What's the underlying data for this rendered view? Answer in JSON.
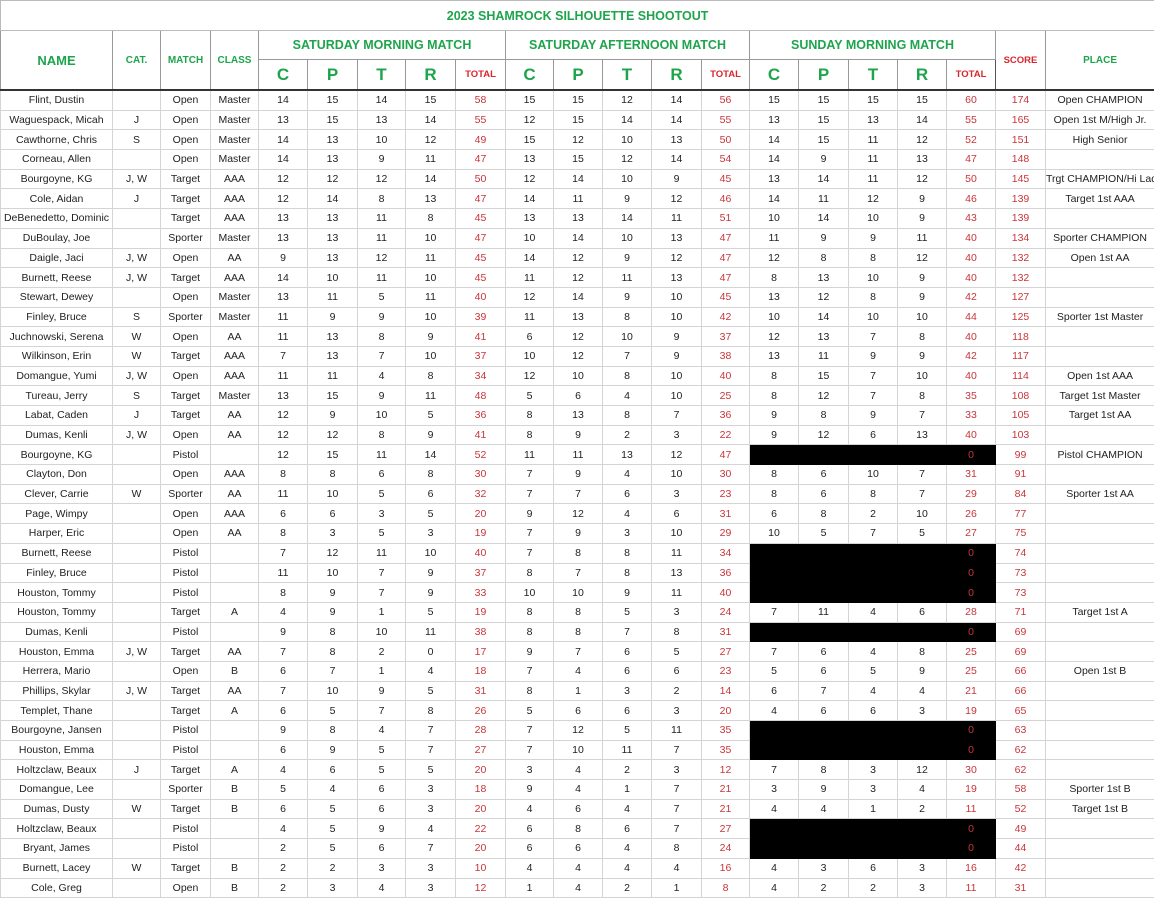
{
  "title": "2023 SHAMROCK SILHOUETTE SHOOTOUT",
  "headers": {
    "name": "NAME",
    "cat": "CAT.",
    "match": "MATCH",
    "class": "CLASS",
    "sat_am": "SATURDAY MORNING MATCH",
    "sat_pm": "SATURDAY AFTERNOON MATCH",
    "sun_am": "SUNDAY MORNING MATCH",
    "score": "SCORE",
    "place": "PLACE",
    "sub": [
      "C",
      "P",
      "T",
      "R",
      "TOTAL"
    ]
  },
  "colors": {
    "header_green": "#1ea54c",
    "total_red": "#c8353a",
    "blackout": "#000000"
  },
  "rows": [
    {
      "cells": [
        "Flint, Dustin",
        "",
        "Open",
        "Master",
        "14",
        "15",
        "14",
        "15",
        "58",
        "15",
        "15",
        "12",
        "14",
        "56",
        "15",
        "15",
        "15",
        "15",
        "60",
        "174",
        "Open CHAMPION"
      ]
    },
    {
      "cells": [
        "Waguespack, Micah",
        "J",
        "Open",
        "Master",
        "13",
        "15",
        "13",
        "14",
        "55",
        "12",
        "15",
        "14",
        "14",
        "55",
        "13",
        "15",
        "13",
        "14",
        "55",
        "165",
        "Open 1st M/High Jr."
      ]
    },
    {
      "cells": [
        "Cawthorne, Chris",
        "S",
        "Open",
        "Master",
        "14",
        "13",
        "10",
        "12",
        "49",
        "15",
        "12",
        "10",
        "13",
        "50",
        "14",
        "15",
        "11",
        "12",
        "52",
        "151",
        "High Senior"
      ]
    },
    {
      "cells": [
        "Corneau, Allen",
        "",
        "Open",
        "Master",
        "14",
        "13",
        "9",
        "11",
        "47",
        "13",
        "15",
        "12",
        "14",
        "54",
        "14",
        "9",
        "11",
        "13",
        "47",
        "148",
        ""
      ]
    },
    {
      "cells": [
        "Bourgoyne, KG",
        "J, W",
        "Target",
        "AAA",
        "12",
        "12",
        "12",
        "14",
        "50",
        "12",
        "14",
        "10",
        "9",
        "45",
        "13",
        "14",
        "11",
        "12",
        "50",
        "145",
        "Trgt CHAMPION/Hi Lady"
      ]
    },
    {
      "cells": [
        "Cole, Aidan",
        "J",
        "Target",
        "AAA",
        "12",
        "14",
        "8",
        "13",
        "47",
        "14",
        "11",
        "9",
        "12",
        "46",
        "14",
        "11",
        "12",
        "9",
        "46",
        "139",
        "Target 1st AAA"
      ]
    },
    {
      "cells": [
        "DeBenedetto, Dominic",
        "",
        "Target",
        "AAA",
        "13",
        "13",
        "11",
        "8",
        "45",
        "13",
        "13",
        "14",
        "11",
        "51",
        "10",
        "14",
        "10",
        "9",
        "43",
        "139",
        ""
      ]
    },
    {
      "cells": [
        "DuBoulay, Joe",
        "",
        "Sporter",
        "Master",
        "13",
        "13",
        "11",
        "10",
        "47",
        "10",
        "14",
        "10",
        "13",
        "47",
        "11",
        "9",
        "9",
        "11",
        "40",
        "134",
        "Sporter CHAMPION"
      ]
    },
    {
      "cells": [
        "Daigle, Jaci",
        "J, W",
        "Open",
        "AA",
        "9",
        "13",
        "12",
        "11",
        "45",
        "14",
        "12",
        "9",
        "12",
        "47",
        "12",
        "8",
        "8",
        "12",
        "40",
        "132",
        "Open 1st AA"
      ]
    },
    {
      "cells": [
        "Burnett, Reese",
        "J, W",
        "Target",
        "AAA",
        "14",
        "10",
        "11",
        "10",
        "45",
        "11",
        "12",
        "11",
        "13",
        "47",
        "8",
        "13",
        "10",
        "9",
        "40",
        "132",
        ""
      ]
    },
    {
      "cells": [
        "Stewart, Dewey",
        "",
        "Open",
        "Master",
        "13",
        "11",
        "5",
        "11",
        "40",
        "12",
        "14",
        "9",
        "10",
        "45",
        "13",
        "12",
        "8",
        "9",
        "42",
        "127",
        ""
      ]
    },
    {
      "cells": [
        "Finley, Bruce",
        "S",
        "Sporter",
        "Master",
        "11",
        "9",
        "9",
        "10",
        "39",
        "11",
        "13",
        "8",
        "10",
        "42",
        "10",
        "14",
        "10",
        "10",
        "44",
        "125",
        "Sporter 1st Master"
      ]
    },
    {
      "cells": [
        "Juchnowski, Serena",
        "W",
        "Open",
        "AA",
        "11",
        "13",
        "8",
        "9",
        "41",
        "6",
        "12",
        "10",
        "9",
        "37",
        "12",
        "13",
        "7",
        "8",
        "40",
        "118",
        ""
      ]
    },
    {
      "cells": [
        "Wilkinson, Erin",
        "W",
        "Target",
        "AAA",
        "7",
        "13",
        "7",
        "10",
        "37",
        "10",
        "12",
        "7",
        "9",
        "38",
        "13",
        "11",
        "9",
        "9",
        "42",
        "117",
        ""
      ]
    },
    {
      "cells": [
        "Domangue, Yumi",
        "J, W",
        "Open",
        "AAA",
        "11",
        "11",
        "4",
        "8",
        "34",
        "12",
        "10",
        "8",
        "10",
        "40",
        "8",
        "15",
        "7",
        "10",
        "40",
        "114",
        "Open 1st AAA"
      ]
    },
    {
      "cells": [
        "Tureau, Jerry",
        "S",
        "Target",
        "Master",
        "13",
        "15",
        "9",
        "11",
        "48",
        "5",
        "6",
        "4",
        "10",
        "25",
        "8",
        "12",
        "7",
        "8",
        "35",
        "108",
        "Target 1st Master"
      ]
    },
    {
      "cells": [
        "Labat, Caden",
        "J",
        "Target",
        "AA",
        "12",
        "9",
        "10",
        "5",
        "36",
        "8",
        "13",
        "8",
        "7",
        "36",
        "9",
        "8",
        "9",
        "7",
        "33",
        "105",
        "Target 1st AA"
      ]
    },
    {
      "cells": [
        "Dumas, Kenli",
        "J, W",
        "Open",
        "AA",
        "12",
        "12",
        "8",
        "9",
        "41",
        "8",
        "9",
        "2",
        "3",
        "22",
        "9",
        "12",
        "6",
        "13",
        "40",
        "103",
        ""
      ]
    },
    {
      "cells": [
        "Bourgoyne, KG",
        "",
        "Pistol",
        "",
        "12",
        "15",
        "11",
        "14",
        "52",
        "11",
        "11",
        "13",
        "12",
        "47",
        "",
        "",
        "",
        "",
        "0",
        "99",
        "Pistol CHAMPION"
      ],
      "sunday_blacked_out": true
    },
    {
      "cells": [
        "Clayton, Don",
        "",
        "Open",
        "AAA",
        "8",
        "8",
        "6",
        "8",
        "30",
        "7",
        "9",
        "4",
        "10",
        "30",
        "8",
        "6",
        "10",
        "7",
        "31",
        "91",
        ""
      ]
    },
    {
      "cells": [
        "Clever, Carrie",
        "W",
        "Sporter",
        "AA",
        "11",
        "10",
        "5",
        "6",
        "32",
        "7",
        "7",
        "6",
        "3",
        "23",
        "8",
        "6",
        "8",
        "7",
        "29",
        "84",
        "Sporter 1st AA"
      ]
    },
    {
      "cells": [
        "Page, Wimpy",
        "",
        "Open",
        "AAA",
        "6",
        "6",
        "3",
        "5",
        "20",
        "9",
        "12",
        "4",
        "6",
        "31",
        "6",
        "8",
        "2",
        "10",
        "26",
        "77",
        ""
      ]
    },
    {
      "cells": [
        "Harper, Eric",
        "",
        "Open",
        "AA",
        "8",
        "3",
        "5",
        "3",
        "19",
        "7",
        "9",
        "3",
        "10",
        "29",
        "10",
        "5",
        "7",
        "5",
        "27",
        "75",
        ""
      ]
    },
    {
      "cells": [
        "Burnett, Reese",
        "",
        "Pistol",
        "",
        "7",
        "12",
        "11",
        "10",
        "40",
        "7",
        "8",
        "8",
        "11",
        "34",
        "",
        "",
        "",
        "",
        "0",
        "74",
        ""
      ],
      "sunday_blacked_out": true
    },
    {
      "cells": [
        "Finley, Bruce",
        "",
        "Pistol",
        "",
        "11",
        "10",
        "7",
        "9",
        "37",
        "8",
        "7",
        "8",
        "13",
        "36",
        "",
        "",
        "",
        "",
        "0",
        "73",
        ""
      ],
      "sunday_blacked_out": true
    },
    {
      "cells": [
        "Houston, Tommy",
        "",
        "Pistol",
        "",
        "8",
        "9",
        "7",
        "9",
        "33",
        "10",
        "10",
        "9",
        "11",
        "40",
        "",
        "",
        "",
        "",
        "0",
        "73",
        ""
      ],
      "sunday_blacked_out": true
    },
    {
      "cells": [
        "Houston, Tommy",
        "",
        "Target",
        "A",
        "4",
        "9",
        "1",
        "5",
        "19",
        "8",
        "8",
        "5",
        "3",
        "24",
        "7",
        "11",
        "4",
        "6",
        "28",
        "71",
        "Target 1st A"
      ]
    },
    {
      "cells": [
        "Dumas, Kenli",
        "",
        "Pistol",
        "",
        "9",
        "8",
        "10",
        "11",
        "38",
        "8",
        "8",
        "7",
        "8",
        "31",
        "",
        "",
        "",
        "",
        "0",
        "69",
        ""
      ],
      "sunday_blacked_out": true
    },
    {
      "cells": [
        "Houston, Emma",
        "J, W",
        "Target",
        "AA",
        "7",
        "8",
        "2",
        "0",
        "17",
        "9",
        "7",
        "6",
        "5",
        "27",
        "7",
        "6",
        "4",
        "8",
        "25",
        "69",
        ""
      ]
    },
    {
      "cells": [
        "Herrera, Mario",
        "",
        "Open",
        "B",
        "6",
        "7",
        "1",
        "4",
        "18",
        "7",
        "4",
        "6",
        "6",
        "23",
        "5",
        "6",
        "5",
        "9",
        "25",
        "66",
        "Open 1st B"
      ]
    },
    {
      "cells": [
        "Phillips, Skylar",
        "J, W",
        "Target",
        "AA",
        "7",
        "10",
        "9",
        "5",
        "31",
        "8",
        "1",
        "3",
        "2",
        "14",
        "6",
        "7",
        "4",
        "4",
        "21",
        "66",
        ""
      ]
    },
    {
      "cells": [
        "Templet, Thane",
        "",
        "Target",
        "A",
        "6",
        "5",
        "7",
        "8",
        "26",
        "5",
        "6",
        "6",
        "3",
        "20",
        "4",
        "6",
        "6",
        "3",
        "19",
        "65",
        ""
      ]
    },
    {
      "cells": [
        "Bourgoyne, Jansen",
        "",
        "Pistol",
        "",
        "9",
        "8",
        "4",
        "7",
        "28",
        "7",
        "12",
        "5",
        "11",
        "35",
        "",
        "",
        "",
        "",
        "0",
        "63",
        ""
      ],
      "sunday_blacked_out": true
    },
    {
      "cells": [
        "Houston, Emma",
        "",
        "Pistol",
        "",
        "6",
        "9",
        "5",
        "7",
        "27",
        "7",
        "10",
        "11",
        "7",
        "35",
        "",
        "",
        "",
        "",
        "0",
        "62",
        ""
      ],
      "sunday_blacked_out": true
    },
    {
      "cells": [
        "Holtzclaw, Beaux",
        "J",
        "Target",
        "A",
        "4",
        "6",
        "5",
        "5",
        "20",
        "3",
        "4",
        "2",
        "3",
        "12",
        "7",
        "8",
        "3",
        "12",
        "30",
        "62",
        ""
      ]
    },
    {
      "cells": [
        "Domangue, Lee",
        "",
        "Sporter",
        "B",
        "5",
        "4",
        "6",
        "3",
        "18",
        "9",
        "4",
        "1",
        "7",
        "21",
        "3",
        "9",
        "3",
        "4",
        "19",
        "58",
        "Sporter 1st B"
      ]
    },
    {
      "cells": [
        "Dumas, Dusty",
        "W",
        "Target",
        "B",
        "6",
        "5",
        "6",
        "3",
        "20",
        "4",
        "6",
        "4",
        "7",
        "21",
        "4",
        "4",
        "1",
        "2",
        "11",
        "52",
        "Target 1st B"
      ]
    },
    {
      "cells": [
        "Holtzclaw, Beaux",
        "",
        "Pistol",
        "",
        "4",
        "5",
        "9",
        "4",
        "22",
        "6",
        "8",
        "6",
        "7",
        "27",
        "",
        "",
        "",
        "",
        "0",
        "49",
        ""
      ],
      "sunday_blacked_out": true
    },
    {
      "cells": [
        "Bryant, James",
        "",
        "Pistol",
        "",
        "2",
        "5",
        "6",
        "7",
        "20",
        "6",
        "6",
        "4",
        "8",
        "24",
        "",
        "",
        "",
        "",
        "0",
        "44",
        ""
      ],
      "sunday_blacked_out": true
    },
    {
      "cells": [
        "Burnett, Lacey",
        "W",
        "Target",
        "B",
        "2",
        "2",
        "3",
        "3",
        "10",
        "4",
        "4",
        "4",
        "4",
        "16",
        "4",
        "3",
        "6",
        "3",
        "16",
        "42",
        ""
      ]
    },
    {
      "cells": [
        "Cole, Greg",
        "",
        "Open",
        "B",
        "2",
        "3",
        "4",
        "3",
        "12",
        "1",
        "4",
        "2",
        "1",
        "8",
        "4",
        "2",
        "2",
        "3",
        "11",
        "31",
        ""
      ]
    }
  ]
}
